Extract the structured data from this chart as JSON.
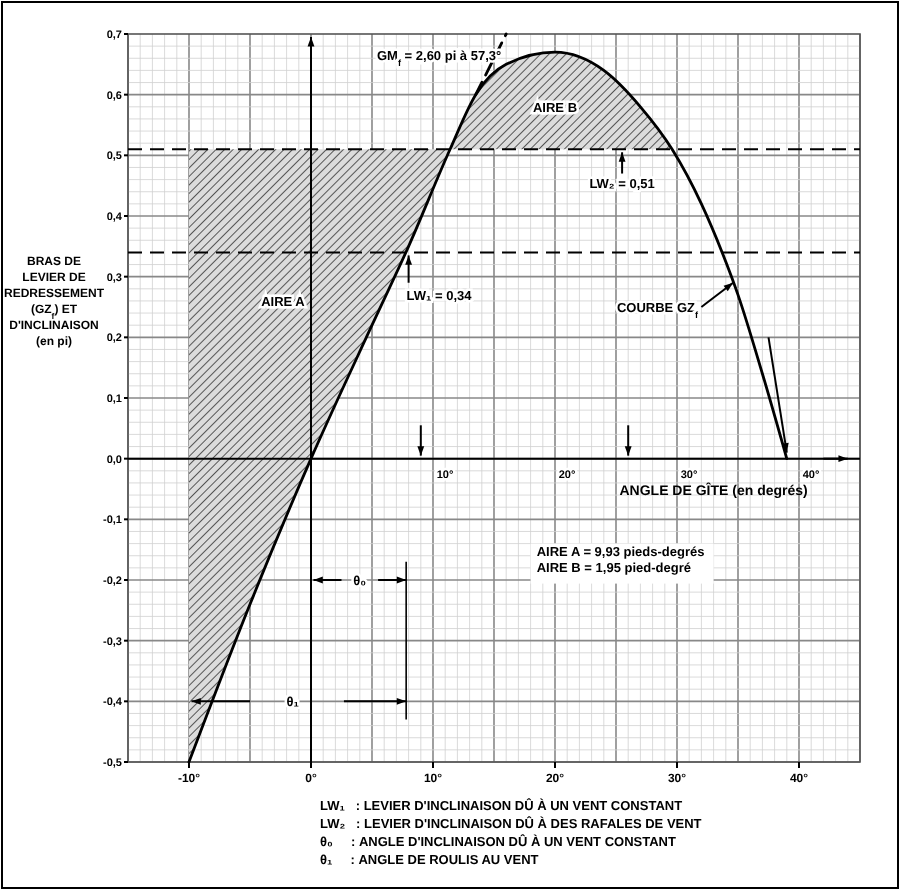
{
  "chart_data": {
    "type": "line",
    "xlabel": "ANGLE DE GÎTE (en degrés)",
    "ylabel": "BRAS DE LEVIER DE REDRESSEMENT (GZ$_{f}$) ET D'INCLINAISON (en pi)",
    "xlim": [
      -15,
      45
    ],
    "ylim": [
      -0.5,
      0.7
    ],
    "xticks": [
      {
        "value": -10,
        "label": "-10°"
      },
      {
        "value": 0,
        "label": "0°"
      },
      {
        "value": 10,
        "label": "10°"
      },
      {
        "value": 20,
        "label": "20°"
      },
      {
        "value": 30,
        "label": "30°"
      },
      {
        "value": 40,
        "label": "40°"
      }
    ],
    "yticks": [
      {
        "value": -0.5,
        "label": "-0,5"
      },
      {
        "value": -0.4,
        "label": "-0,4"
      },
      {
        "value": -0.3,
        "label": "-0,3"
      },
      {
        "value": -0.2,
        "label": "-0,2"
      },
      {
        "value": -0.1,
        "label": "-0,1"
      },
      {
        "value": 0,
        "label": "0,0"
      },
      {
        "value": 0.1,
        "label": "0,1"
      },
      {
        "value": 0.2,
        "label": "0,2"
      },
      {
        "value": 0.3,
        "label": "0,3"
      },
      {
        "value": 0.4,
        "label": "0,4"
      },
      {
        "value": 0.5,
        "label": "0,5"
      },
      {
        "value": 0.6,
        "label": "0,6"
      },
      {
        "value": 0.7,
        "label": "0,7"
      }
    ],
    "grid": true,
    "series": [
      {
        "color": "#000000",
        "line_style": "solid",
        "x": [
          -10,
          -5,
          0,
          5,
          8,
          11.4,
          13.5,
          16,
          20,
          24,
          27,
          29.6,
          32,
          33.7,
          35,
          37,
          39
        ],
        "values": [
          -0.5,
          -0.24,
          0,
          0.22,
          0.35,
          0.51,
          0.6,
          0.65,
          0.67,
          0.64,
          0.58,
          0.51,
          0.42,
          0.34,
          0.27,
          0.14,
          0
        ]
      },
      {
        "color": "#000000",
        "line_style": "dashed",
        "x": [
          13.5,
          16
        ],
        "values": [
          0.6,
          0.7
        ]
      }
    ],
    "ref_lines": [
      {
        "axis": "y",
        "value": 0.51,
        "line_style": "dashed"
      },
      {
        "axis": "y",
        "value": 0.34,
        "line_style": "dashed"
      }
    ],
    "annotations": [
      "GM$_{f}$ = 2,60 pi à 57,3°",
      "AIRE  B",
      "AIRE  A",
      "LW₁ = 0,34",
      "LW₂ = 0,51",
      "COURBE GZ$_{f}$",
      "θ₀",
      "θ₁",
      "10°",
      "20°",
      "30°",
      "40°",
      "AIRE  A = 9,93 pieds-degrés",
      "AIRE  B = 1,95 pied-degré",
      "LW₁   : LEVIER D'INCLINAISON DÛ À UN VENT CONSTANT",
      "LW₂   : LEVIER D'INCLINAISON DÛ À DES RAFALES DE VENT",
      "θ₀     : ANGLE D'INCLINAISON DÛ À UN VENT CONSTANT",
      "θ₁     : ANGLE DE ROULIS AU VENT"
    ]
  }
}
